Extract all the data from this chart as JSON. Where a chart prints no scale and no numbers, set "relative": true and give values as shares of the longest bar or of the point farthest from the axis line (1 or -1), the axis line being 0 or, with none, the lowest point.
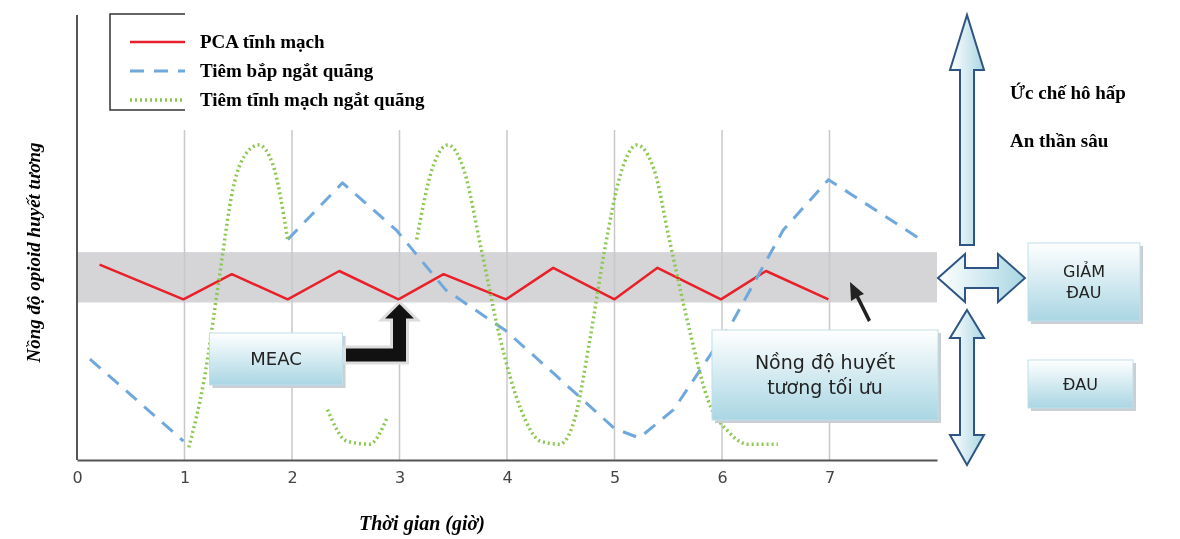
{
  "chart_data": {
    "type": "line",
    "xlabel": "Thời gian (giờ)",
    "ylabel": "Nồng độ opioid huyết tương",
    "relative": true,
    "xlim": [
      0,
      8
    ],
    "xticks": [
      0,
      1,
      2,
      3,
      4,
      5,
      6,
      7
    ],
    "grid": "x",
    "legend": "top left",
    "series": [
      {
        "name": "PCA tĩnh mạch",
        "color": "#e8202a",
        "line_style": "solid",
        "x": [
          0.21,
          0.99,
          1.44,
          1.96,
          2.44,
          2.99,
          3.41,
          3.99,
          4.43,
          5.0,
          5.4,
          5.99,
          6.41,
          6.99
        ],
        "values": [
          0.62,
          0.51,
          0.59,
          0.51,
          0.6,
          0.51,
          0.59,
          0.51,
          0.61,
          0.51,
          0.61,
          0.51,
          0.6,
          0.51
        ]
      },
      {
        "name": "Tiêm bắp ngắt quãng",
        "color": "#6fa8dc",
        "line_style": "dashed",
        "x": [
          0.12,
          0.49,
          0.99,
          1.41,
          1.96,
          2.47,
          2.97,
          3.43,
          3.99,
          4.45,
          5.0,
          5.23,
          5.55,
          6.1,
          6.57,
          6.99,
          7.49,
          7.85
        ],
        "values": [
          0.32,
          0.21,
          0.06,
          null,
          0.7,
          0.88,
          0.73,
          0.54,
          0.41,
          0.27,
          0.1,
          0.07,
          0.16,
          0.44,
          0.73,
          0.89,
          0.78,
          0.7
        ]
      },
      {
        "name": "Tiêm tĩnh mạch ngắt quãng",
        "color": "#8cc751",
        "line_style": "dotted",
        "x": [
          1.04,
          1.18,
          1.32,
          1.45,
          1.59,
          1.69,
          1.82,
          1.96,
          2.15,
          2.33,
          2.51,
          2.72,
          2.88,
          3.02,
          3.16,
          3.3,
          3.45,
          3.6,
          3.76,
          3.94,
          4.13,
          4.31,
          4.49,
          4.63,
          4.77,
          4.91,
          5.05,
          5.21,
          5.37,
          5.51,
          5.7,
          5.87,
          6.06,
          6.24,
          6.52
        ],
        "values": [
          0.04,
          0.25,
          0.57,
          0.86,
          0.98,
          1.0,
          0.94,
          0.7,
          null,
          0.16,
          0.06,
          0.05,
          0.13,
          null,
          0.7,
          0.92,
          1.0,
          0.92,
          0.67,
          0.38,
          0.16,
          0.06,
          0.05,
          0.13,
          0.38,
          0.67,
          0.9,
          1.0,
          0.92,
          0.7,
          0.41,
          0.19,
          0.09,
          0.05,
          0.05
        ]
      }
    ],
    "bands": [
      {
        "axis": "y",
        "from": 0.5,
        "to": 0.66,
        "color": "#d5d5d7",
        "label": "Nồng độ huyết tương tối ưu"
      }
    ],
    "annotations": [
      "MEAC",
      "Ức chế hô hấp",
      "An thần sâu",
      "GIẢM ĐAU",
      "ĐAU"
    ]
  }
}
